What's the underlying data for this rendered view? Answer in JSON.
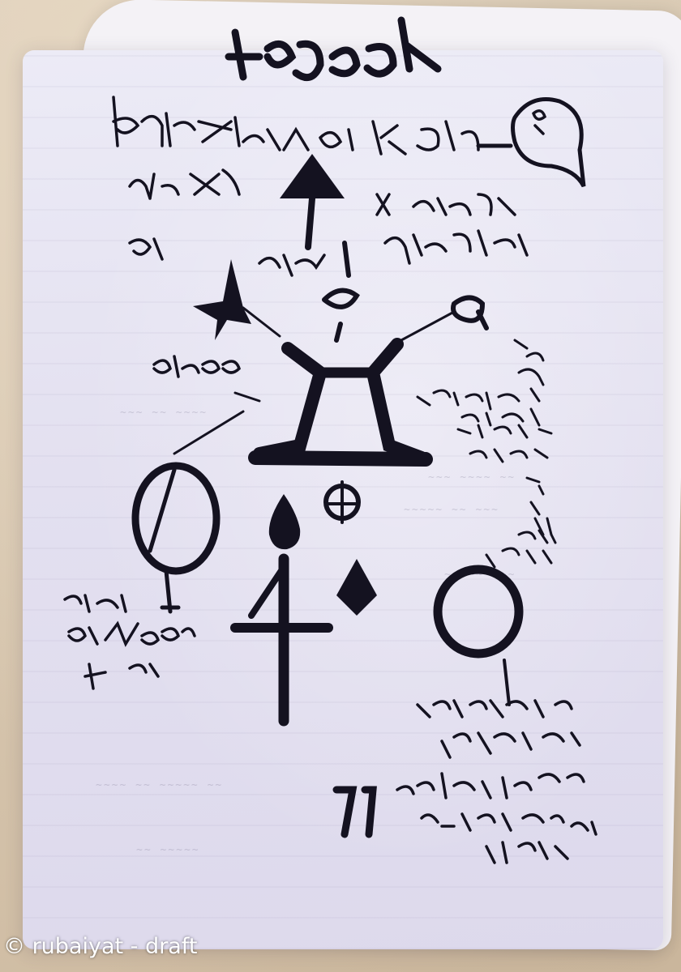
{
  "photo": {
    "subject": "handwritten occult symbol manuscript on paper",
    "ink_color": "#141220",
    "paper_color": "#e6e4f2"
  },
  "watermark": {
    "text": "© rubaiyat - draft"
  }
}
